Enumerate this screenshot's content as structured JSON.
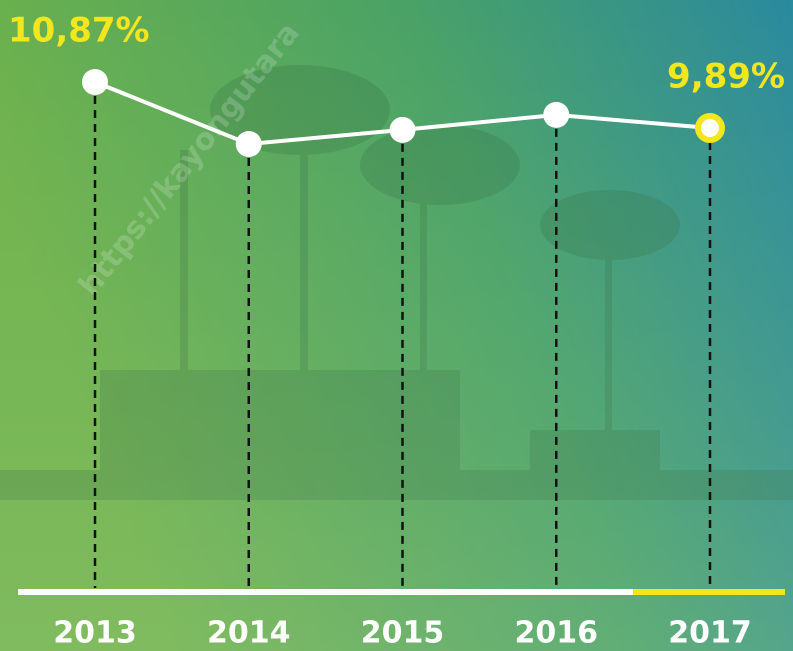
{
  "chart_data": {
    "type": "line",
    "categories": [
      "2013",
      "2014",
      "2015",
      "2016",
      "2017"
    ],
    "values": [
      10.87,
      9.55,
      9.85,
      10.17,
      9.89
    ],
    "value_labels": [
      "10,87%",
      null,
      null,
      null,
      "9,89%"
    ],
    "color": "#ffffff",
    "highlight_color": "#f2e61c",
    "watermark": "https://kayongutara"
  }
}
